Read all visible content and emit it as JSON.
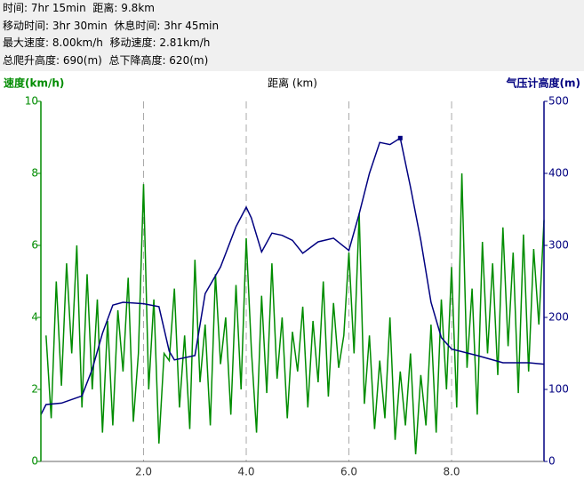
{
  "header": {
    "lines": [
      "时间: 7hr 15min  距离: 9.8km",
      "移动时间: 3hr 30min  休息时间: 3hr 45min",
      "最大速度: 8.00km/h  移动速度: 2.81km/h",
      "总爬升高度: 690(m)  总下降高度: 620(m)"
    ]
  },
  "chart_data": {
    "type": "line",
    "x_label": "距离 (km)",
    "y_label": "速度(km/h)",
    "y2_label": "气压计高度(m)",
    "xlim": [
      0,
      9.8
    ],
    "xticks": [
      {
        "value": 2,
        "label": "2.0"
      },
      {
        "value": 4,
        "label": "4.0"
      },
      {
        "value": 6,
        "label": "6.0"
      },
      {
        "value": 8,
        "label": "8.0"
      }
    ],
    "ylim": [
      0,
      10
    ],
    "yticks": [
      0,
      2,
      4,
      6,
      8,
      10
    ],
    "y2lim": [
      0,
      500
    ],
    "y2ticks": [
      0,
      100,
      200,
      300,
      400,
      500
    ],
    "grid": true,
    "series": [
      {
        "name": "速度",
        "color": "#008c00",
        "axis": "y",
        "x": [
          0.1,
          0.2,
          0.3,
          0.4,
          0.5,
          0.6,
          0.7,
          0.8,
          0.9,
          1.0,
          1.1,
          1.2,
          1.3,
          1.4,
          1.5,
          1.6,
          1.7,
          1.8,
          1.9,
          2.0,
          2.1,
          2.2,
          2.3,
          2.4,
          2.5,
          2.6,
          2.7,
          2.8,
          2.9,
          3.0,
          3.1,
          3.2,
          3.3,
          3.4,
          3.5,
          3.6,
          3.7,
          3.8,
          3.9,
          4.0,
          4.1,
          4.2,
          4.3,
          4.4,
          4.5,
          4.6,
          4.7,
          4.8,
          4.9,
          5.0,
          5.1,
          5.2,
          5.3,
          5.4,
          5.5,
          5.6,
          5.7,
          5.8,
          5.9,
          6.0,
          6.1,
          6.2,
          6.3,
          6.4,
          6.5,
          6.6,
          6.7,
          6.8,
          6.9,
          7.0,
          7.1,
          7.2,
          7.3,
          7.4,
          7.5,
          7.6,
          7.7,
          7.8,
          7.9,
          8.0,
          8.1,
          8.2,
          8.3,
          8.4,
          8.5,
          8.6,
          8.7,
          8.8,
          8.9,
          9.0,
          9.1,
          9.2,
          9.3,
          9.4,
          9.5,
          9.6,
          9.7,
          9.8
        ],
        "values": [
          3.5,
          1.2,
          5.0,
          2.1,
          5.5,
          3.0,
          6.0,
          1.5,
          5.2,
          2.0,
          4.5,
          0.8,
          3.9,
          1.0,
          4.2,
          2.5,
          5.1,
          1.1,
          3.0,
          7.7,
          2.0,
          4.5,
          0.5,
          3.0,
          2.8,
          4.8,
          1.5,
          3.5,
          0.9,
          5.6,
          2.2,
          3.8,
          1.0,
          5.2,
          2.7,
          4.0,
          1.3,
          4.9,
          2.0,
          6.2,
          3.1,
          0.8,
          4.6,
          1.9,
          5.5,
          2.3,
          4.0,
          1.2,
          3.6,
          2.5,
          4.3,
          1.5,
          3.9,
          2.2,
          5.0,
          1.8,
          4.4,
          2.6,
          3.5,
          5.8,
          3.0,
          6.9,
          1.6,
          3.5,
          0.9,
          2.8,
          1.2,
          4.0,
          0.6,
          2.5,
          1.0,
          3.0,
          0.2,
          2.4,
          1.0,
          3.8,
          0.8,
          4.5,
          2.0,
          5.4,
          1.5,
          8.0,
          2.6,
          4.8,
          1.3,
          6.1,
          3.0,
          5.5,
          2.4,
          6.5,
          3.2,
          5.8,
          1.9,
          6.3,
          2.5,
          5.9,
          3.8,
          6.7
        ]
      },
      {
        "name": "气压计高度",
        "color": "#000080",
        "axis": "y2",
        "x": [
          0,
          0.1,
          0.4,
          0.8,
          1.0,
          1.2,
          1.4,
          1.6,
          2.0,
          2.3,
          2.5,
          2.6,
          3.0,
          3.2,
          3.5,
          3.8,
          4.0,
          4.1,
          4.3,
          4.5,
          4.7,
          4.9,
          5.1,
          5.4,
          5.7,
          6.0,
          6.2,
          6.4,
          6.6,
          6.8,
          7.0,
          7.2,
          7.4,
          7.6,
          7.8,
          8.0,
          8.5,
          9.0,
          9.5,
          9.8
        ],
        "values": [
          65,
          79,
          81,
          91,
          128,
          178,
          217,
          221,
          219,
          215,
          153,
          141,
          147,
          233,
          270,
          326,
          353,
          338,
          291,
          317,
          314,
          307,
          289,
          305,
          310,
          293,
          344,
          400,
          443,
          440,
          449,
          381,
          307,
          221,
          172,
          156,
          147,
          137,
          137,
          135
        ]
      }
    ]
  }
}
